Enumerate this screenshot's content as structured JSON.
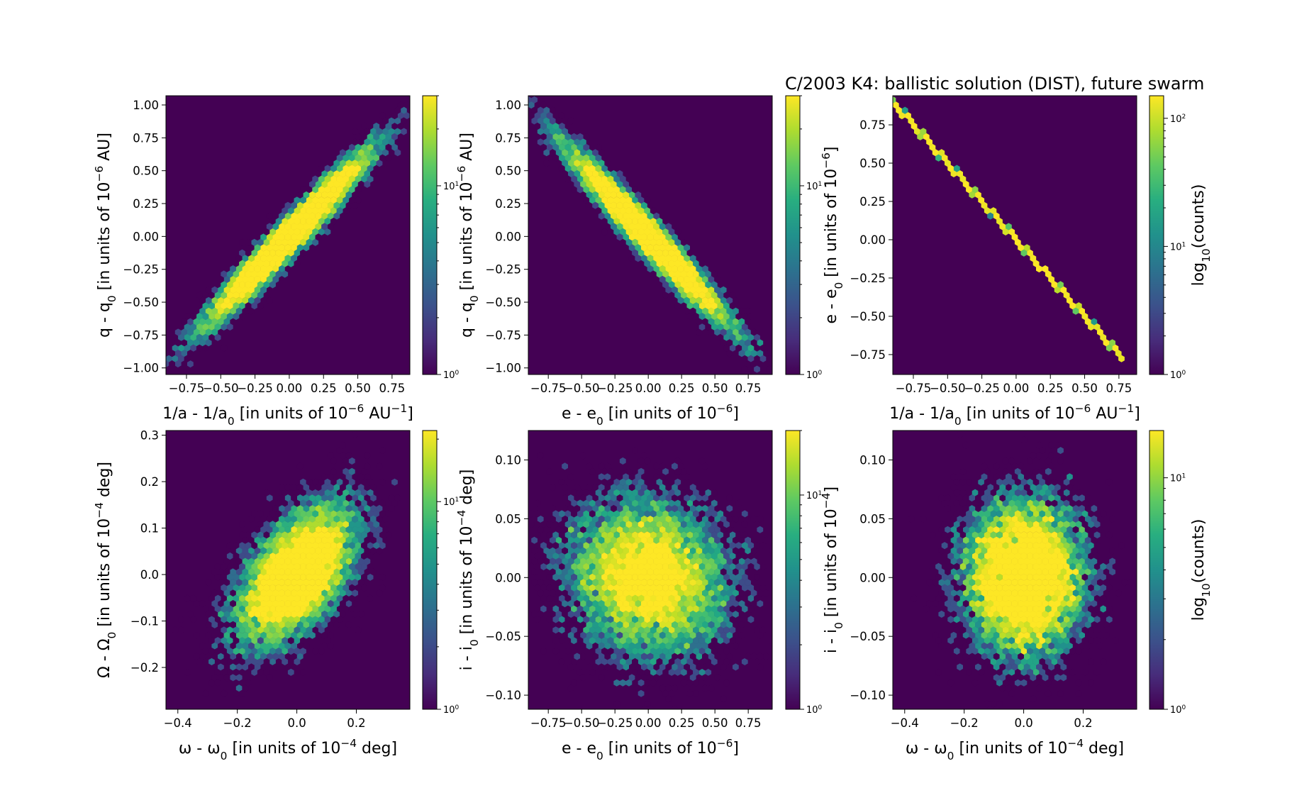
{
  "figure_title": "C/2003 K4:  ballistic solution (DIST), future swarm",
  "colorbar_label": "log10(counts)",
  "colormap": "viridis",
  "colors": {
    "background": "#440154",
    "peak": "#fde725",
    "mid": "#21918c"
  },
  "chart_data": [
    {
      "type": "heatmap",
      "subtype": "hexbin",
      "xlabel": "1/a - 1/a0 [in units of 10^-6 AU^-1]",
      "ylabel": "q - q0 [in units of 10^-6 AU]",
      "xlim": [
        -0.9,
        0.88
      ],
      "ylim": [
        -1.05,
        1.07
      ],
      "xticks": [
        -0.75,
        -0.5,
        -0.25,
        0.0,
        0.25,
        0.5,
        0.75
      ],
      "yticks": [
        -1.0,
        -0.75,
        -0.5,
        -0.25,
        0.0,
        0.25,
        0.5,
        0.75,
        1.0
      ],
      "xtick_labels": [
        "−0.75",
        "−0.50",
        "−0.25",
        "0.00",
        "0.25",
        "0.50",
        "0.75"
      ],
      "ytick_labels": [
        "−1.00",
        "−0.75",
        "−0.50",
        "−0.25",
        "0.00",
        "0.25",
        "0.50",
        "0.75",
        "1.00"
      ],
      "distribution": {
        "shape": "correlated-gaussian",
        "sigma_x": 0.3,
        "sigma_y": 0.33,
        "correlation": 0.97
      },
      "colorbar": {
        "scale": "log",
        "min": 1,
        "max": 30,
        "tick_labels": [
          "10^0",
          "10^1"
        ],
        "label": ""
      }
    },
    {
      "type": "heatmap",
      "subtype": "hexbin",
      "xlabel": "e - e0 [in units of 10^-6]",
      "ylabel": "q - q0 [in units of 10^-6 AU]",
      "xlim": [
        -0.9,
        0.93
      ],
      "ylim": [
        -1.05,
        1.07
      ],
      "xticks": [
        -0.75,
        -0.5,
        -0.25,
        0.0,
        0.25,
        0.5,
        0.75
      ],
      "yticks": [
        -1.0,
        -0.75,
        -0.5,
        -0.25,
        0.0,
        0.25,
        0.5,
        0.75,
        1.0
      ],
      "xtick_labels": [
        "−0.75",
        "−0.50",
        "−0.25",
        "0.00",
        "0.25",
        "0.50",
        "0.75"
      ],
      "ytick_labels": [
        "−1.00",
        "−0.75",
        "−0.50",
        "−0.25",
        "0.00",
        "0.25",
        "0.50",
        "0.75",
        "1.00"
      ],
      "distribution": {
        "shape": "correlated-gaussian",
        "sigma_x": 0.3,
        "sigma_y": 0.33,
        "correlation": -0.97
      },
      "colorbar": {
        "scale": "log",
        "min": 1,
        "max": 30,
        "tick_labels": [
          "10^0",
          "10^1"
        ],
        "label": ""
      }
    },
    {
      "type": "heatmap",
      "subtype": "hexbin",
      "xlabel": "1/a - 1/a0 [in units of 10^-6 AU^-1]",
      "ylabel": "e - e0 [in units of 10^-6]",
      "xlim": [
        -0.9,
        0.88
      ],
      "ylim": [
        -0.88,
        0.94
      ],
      "xticks": [
        -0.75,
        -0.5,
        -0.25,
        0.0,
        0.25,
        0.5,
        0.75
      ],
      "yticks": [
        -0.75,
        -0.5,
        -0.25,
        0.0,
        0.25,
        0.5,
        0.75
      ],
      "xtick_labels": [
        "−0.75",
        "−0.50",
        "−0.25",
        "0.00",
        "0.25",
        "0.50",
        "0.75"
      ],
      "ytick_labels": [
        "−0.75",
        "−0.50",
        "−0.25",
        "0.00",
        "0.25",
        "0.50",
        "0.75"
      ],
      "distribution": {
        "shape": "line",
        "slope": -1.0,
        "endpoints_x": [
          -0.9,
          0.78
        ]
      },
      "colorbar": {
        "scale": "log",
        "min": 1,
        "max": 150,
        "tick_labels": [
          "10^0",
          "10^1",
          "10^2"
        ],
        "label": "log10(counts)"
      }
    },
    {
      "type": "heatmap",
      "subtype": "hexbin",
      "xlabel": "ω - ω0 [in units of 10^-4 deg]",
      "ylabel": "Ω - Ω0 [in units of 10^-4 deg]",
      "xlim": [
        -0.44,
        0.38
      ],
      "ylim": [
        -0.29,
        0.31
      ],
      "xticks": [
        -0.4,
        -0.2,
        0.0,
        0.2
      ],
      "yticks": [
        -0.2,
        -0.1,
        0.0,
        0.1,
        0.2,
        0.3
      ],
      "xtick_labels": [
        "−0.4",
        "−0.2",
        "0.0",
        "0.2"
      ],
      "ytick_labels": [
        "−0.2",
        "−0.1",
        "0.0",
        "0.1",
        "0.2",
        "0.3"
      ],
      "distribution": {
        "shape": "correlated-gaussian",
        "sigma_x": 0.1,
        "sigma_y": 0.075,
        "correlation": 0.55
      },
      "colorbar": {
        "scale": "log",
        "min": 1,
        "max": 22,
        "tick_labels": [
          "10^0",
          "10^1"
        ],
        "label": ""
      }
    },
    {
      "type": "heatmap",
      "subtype": "hexbin",
      "xlabel": "e - e0 [in units of 10^-6]",
      "ylabel": "i - i0 [in units of 10^-4 deg]",
      "xlim": [
        -0.9,
        0.93
      ],
      "ylim": [
        -0.112,
        0.125
      ],
      "xticks": [
        -0.75,
        -0.5,
        -0.25,
        0.0,
        0.25,
        0.5,
        0.75
      ],
      "yticks": [
        -0.1,
        -0.05,
        0.0,
        0.05,
        0.1
      ],
      "xtick_labels": [
        "−0.75",
        "−0.50",
        "−0.25",
        "0.00",
        "0.25",
        "0.50",
        "0.75"
      ],
      "ytick_labels": [
        "−0.10",
        "−0.05",
        "0.00",
        "0.05",
        "0.10"
      ],
      "distribution": {
        "shape": "correlated-gaussian",
        "sigma_x": 0.3,
        "sigma_y": 0.033,
        "correlation": -0.1
      },
      "colorbar": {
        "scale": "log",
        "min": 1,
        "max": 20,
        "tick_labels": [
          "10^0",
          "10^1"
        ],
        "label": ""
      }
    },
    {
      "type": "heatmap",
      "subtype": "hexbin",
      "xlabel": "ω - ω0 [in units of 10^-4 deg]",
      "ylabel": "i - i0 [in units of 10^-4]",
      "xlim": [
        -0.44,
        0.38
      ],
      "ylim": [
        -0.112,
        0.125
      ],
      "xticks": [
        -0.4,
        -0.2,
        0.0,
        0.2
      ],
      "yticks": [
        -0.1,
        -0.05,
        0.0,
        0.05,
        0.1
      ],
      "xtick_labels": [
        "−0.4",
        "−0.2",
        "0.0",
        "0.2"
      ],
      "ytick_labels": [
        "−0.10",
        "−0.05",
        "0.00",
        "0.05",
        "0.10"
      ],
      "distribution": {
        "shape": "correlated-gaussian",
        "sigma_x": 0.1,
        "sigma_y": 0.033,
        "correlation": 0.0
      },
      "colorbar": {
        "scale": "log",
        "min": 1,
        "max": 16,
        "tick_labels": [
          "10^0",
          "10^1"
        ],
        "label": "log10(counts)"
      }
    }
  ]
}
